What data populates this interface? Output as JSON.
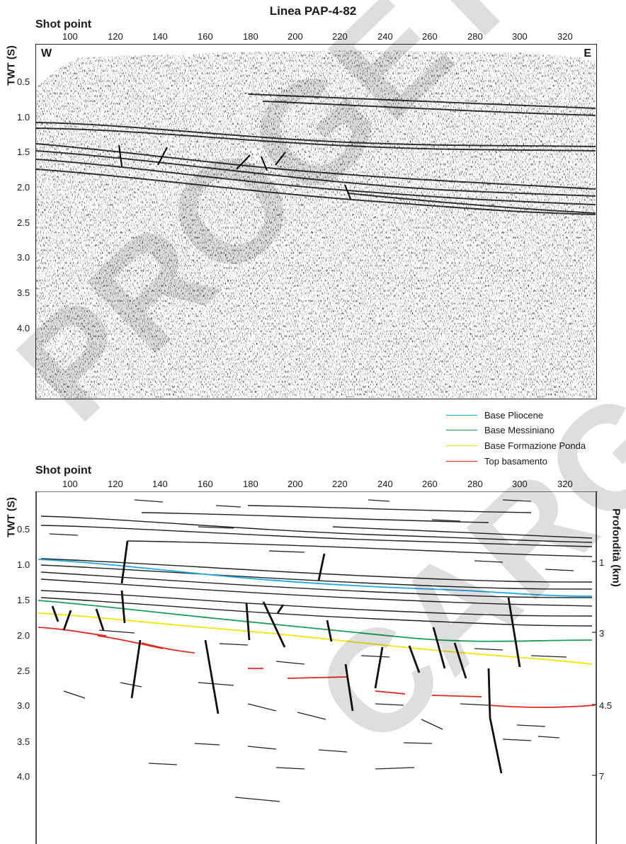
{
  "title": "Linea PAP-4-82",
  "top_panel": {
    "shot_point_label": "Shot point",
    "shot_ticks": [
      "100",
      "120",
      "140",
      "160",
      "180",
      "200",
      "220",
      "240",
      "260",
      "280",
      "300",
      "320"
    ],
    "twt_label": "TWT (S)",
    "twt_ticks": [
      "0.5",
      "1.0",
      "1.5",
      "2.0",
      "2.5",
      "3.0",
      "3.5",
      "4.0"
    ],
    "west": "W",
    "east": "E"
  },
  "legend": {
    "items": [
      {
        "label": "Base Pliocene",
        "color": "#1ea9e1"
      },
      {
        "label": "Base Messiniano",
        "color": "#1b9e55"
      },
      {
        "label": "Base Formazione Ponda",
        "color": "#f4e400"
      },
      {
        "label": "Top basamento",
        "color": "#e1261c"
      }
    ]
  },
  "bottom_panel": {
    "shot_point_label": "Shot point",
    "shot_ticks": [
      "100",
      "120",
      "140",
      "160",
      "180",
      "200",
      "220",
      "240",
      "260",
      "280",
      "300",
      "320"
    ],
    "twt_label": "TWT (S)",
    "twt_ticks": [
      "0.5",
      "1.0",
      "1.5",
      "2.0",
      "2.5",
      "3.0",
      "3.5",
      "4.0"
    ],
    "depth_label": "Profondità (km)",
    "depth_ticks": [
      "1",
      "3",
      "4.5",
      "7"
    ]
  },
  "watermark": {
    "word1": "PROGETTO",
    "word2": "CARG"
  }
}
